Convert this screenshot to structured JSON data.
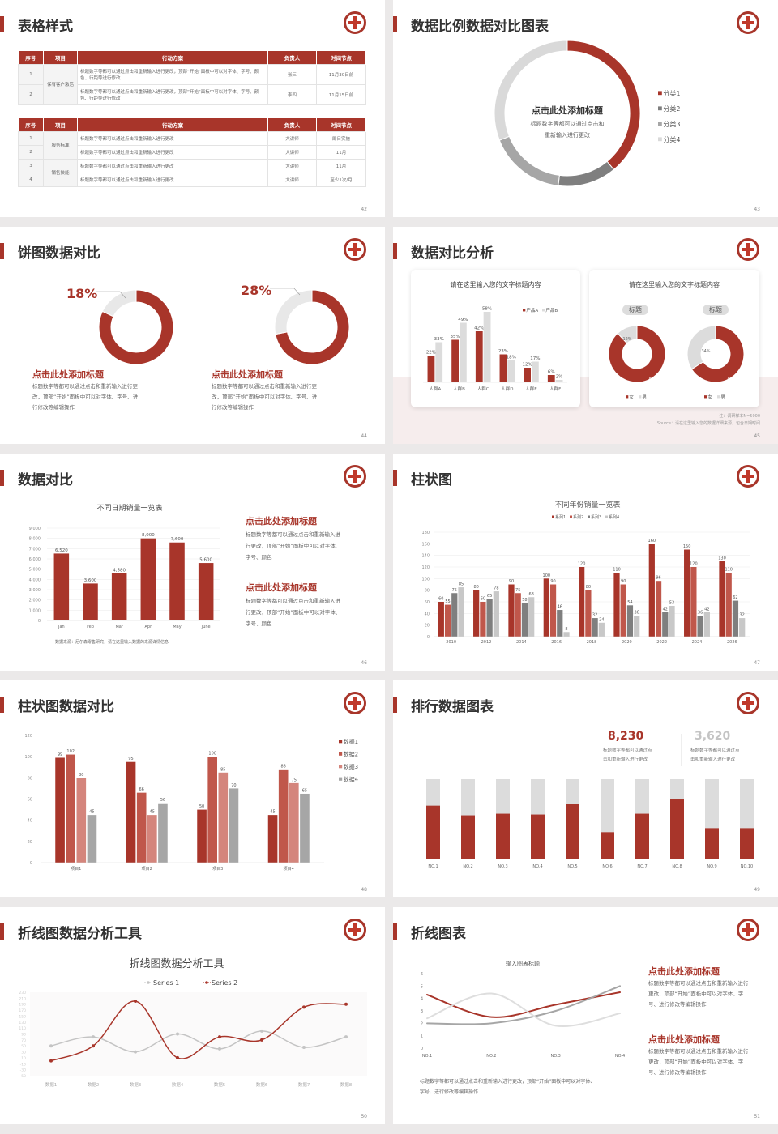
{
  "colors": {
    "accent": "#a8352a",
    "gray_dark": "#7f7f7f",
    "gray_mid": "#a6a6a6",
    "gray_light": "#d9d9d9"
  },
  "s42": {
    "title": "表格样式",
    "page": "42",
    "headers": [
      "序号",
      "项目",
      "行动方案",
      "负责人",
      "时间节点"
    ],
    "table1": {
      "group": "保有客户激活",
      "rows": [
        {
          "no": "1",
          "plan": "标题数字等都可以通过点击和重新输入进行更改，顶部“开始”面板中可以对字体、字号、颜色、行距等进行修改",
          "owner": "张三",
          "time": "11月30日前"
        },
        {
          "no": "2",
          "plan": "标题数字等都可以通过点击和重新输入进行更改，顶部“开始”面板中可以对字体、字号、颜色、行距等进行修改",
          "owner": "李四",
          "time": "11月15日前"
        }
      ]
    },
    "table2": {
      "groups": [
        "服务标准",
        "销售技能"
      ],
      "rows": [
        {
          "no": "1",
          "plan": "标题数字等都可以通过点击和重新输入进行更改",
          "owner": "大讲师",
          "time": "即日实施"
        },
        {
          "no": "2",
          "plan": "标题数字等都可以通过点击和重新输入进行更改",
          "owner": "大讲师",
          "time": "11月"
        },
        {
          "no": "3",
          "plan": "标题数字等都可以通过点击和重新输入进行更改",
          "owner": "大讲师",
          "time": "11月"
        },
        {
          "no": "4",
          "plan": "标题数字等都可以通过点击和重新输入进行更改",
          "owner": "大讲师",
          "time": "至少1次/月"
        }
      ]
    }
  },
  "s43": {
    "title": "数据比例数据对比图表",
    "page": "43",
    "center_title": "点击此处添加标题",
    "center_lines": [
      "标题数字等都可以通过点击和",
      "重新输入进行更改"
    ]
  },
  "s44": {
    "title": "饼图数据对比",
    "page": "44",
    "items": [
      {
        "heading": "点击此处添加标题",
        "lines": [
          "标题数字等都可以通过点击和重新输入进行更",
          "改，顶部“开始”面板中可以对字体、字号、进",
          "行修改等编辑操作"
        ]
      },
      {
        "heading": "点击此处添加标题",
        "lines": [
          "标题数字等都可以通过点击和重新输入进行更",
          "改，顶部“开始”面板中可以对字体、字号、进",
          "行修改等编辑操作"
        ]
      }
    ]
  },
  "s45": {
    "title": "数据对比分析",
    "page": "45",
    "note": "注：调研样本N=5000",
    "source": "Source：请在这里输入您的数据详细来源，包含日期时间"
  },
  "s46": {
    "title": "数据对比",
    "page": "46",
    "source": "数据来源：尼尔森零售研究，请在这里输入数据的来源详情信息",
    "blocks": [
      {
        "heading": "点击此处添加标题",
        "lines": [
          "标题数字等都可以通过点击和重新输入进",
          "行更改，顶部“开始”面板中可以对字体、",
          "字号、颜色"
        ]
      },
      {
        "heading": "点击此处添加标题",
        "lines": [
          "标题数字等都可以通过点击和重新输入进",
          "行更改，顶部“开始”面板中可以对字体、",
          "字号、颜色"
        ]
      }
    ]
  },
  "s47": {
    "title": "柱状图",
    "page": "47"
  },
  "s48": {
    "title": "柱状图数据对比",
    "page": "48"
  },
  "s49": {
    "title": "排行数据图表",
    "page": "49",
    "stats": [
      {
        "value": "8,230",
        "lines": [
          "标题数字等都可以通过点",
          "击和重新输入进行更改"
        ]
      },
      {
        "value": "3,620",
        "lines": [
          "标题数字等都可以通过点",
          "击和重新输入进行更改"
        ]
      }
    ]
  },
  "s50": {
    "title": "折线图数据分析工具",
    "page": "50"
  },
  "s51": {
    "title": "折线图表",
    "page": "51",
    "footnote": [
      "标题数字等都可以通过点击和重新输入进行更改，顶部“开始”面板中可以对字体、",
      "字号、进行修改等编辑操作"
    ],
    "blocks": [
      {
        "heading": "点击此处添加标题",
        "lines": [
          "标题数字等都可以通过点击和重新输入进行",
          "更改，顶部“开始”面板中可以对字体、字",
          "号、进行修改等编辑操作"
        ]
      },
      {
        "heading": "点击此处添加标题",
        "lines": [
          "标题数字等都可以通过点击和重新输入进行",
          "更改，顶部“开始”面板中可以对字体、字",
          "号、进行修改等编辑操作"
        ]
      }
    ]
  },
  "chart_data": [
    {
      "type": "pie",
      "donut": true,
      "categories": [
        "分类1",
        "分类2",
        "分类3",
        "分类4"
      ],
      "values": [
        39,
        13,
        17,
        31
      ],
      "legend": "right"
    },
    {
      "type": "pie",
      "donut": true,
      "label": "18%",
      "values": [
        82,
        18
      ]
    },
    {
      "type": "pie",
      "donut": true,
      "label": "28%",
      "values": [
        72,
        28
      ]
    },
    {
      "type": "bar",
      "title": "请在这里输入您的文字标题内容",
      "categories": [
        "人群A",
        "人群B",
        "人群C",
        "人群D",
        "人群E",
        "人群F"
      ],
      "series": [
        {
          "name": "产品A",
          "values": [
            22,
            35,
            42,
            23,
            12,
            6
          ]
        },
        {
          "name": "产品B",
          "values": [
            33,
            49,
            58,
            18,
            17,
            2
          ]
        }
      ],
      "unit": "%",
      "ylim": [
        0,
        64
      ],
      "legend": "top-right"
    },
    {
      "type": "pie",
      "donut": true,
      "title": "请在这里输入您的文字标题内容",
      "label": "标题",
      "categories": [
        "女",
        "男"
      ],
      "values": [
        88,
        12
      ],
      "unit": "%"
    },
    {
      "type": "pie",
      "donut": true,
      "label": "标题",
      "categories": [
        "女",
        "男"
      ],
      "values": [
        66,
        34
      ],
      "unit": "%"
    },
    {
      "type": "bar",
      "title": "不同日期销量一览表",
      "categories": [
        "Jan",
        "Feb",
        "Mar",
        "Apr",
        "May",
        "June"
      ],
      "series": [
        {
          "values": [
            6520,
            3600,
            4580,
            8000,
            7600,
            5600
          ]
        }
      ],
      "ylim": [
        0,
        9000
      ],
      "ystep": 1000,
      "grid": true
    },
    {
      "type": "bar",
      "title": "不同年份销量一览表",
      "categories": [
        "2010",
        "2012",
        "2014",
        "2016",
        "2018",
        "2020",
        "2022",
        "2024",
        "2026"
      ],
      "series": [
        {
          "name": "系列1",
          "values": [
            60,
            80,
            90,
            100,
            120,
            110,
            160,
            150,
            130
          ]
        },
        {
          "name": "系列2",
          "values": [
            55,
            60,
            75,
            90,
            80,
            90,
            96,
            120,
            110
          ]
        },
        {
          "name": "系列3",
          "values": [
            75,
            65,
            58,
            46,
            32,
            54,
            42,
            36,
            62
          ]
        },
        {
          "name": "系列4",
          "values": [
            85,
            78,
            68,
            8,
            24,
            36,
            53,
            42,
            32
          ]
        }
      ],
      "ylim": [
        0,
        180
      ],
      "ystep": 20,
      "legend": "top"
    },
    {
      "type": "bar",
      "categories": [
        "项目1",
        "项目2",
        "项目3",
        "项目4"
      ],
      "series": [
        {
          "name": "数据1",
          "values": [
            99,
            95,
            50,
            45
          ]
        },
        {
          "name": "数据2",
          "values": [
            102,
            66,
            100,
            88
          ]
        },
        {
          "name": "数据3",
          "values": [
            80,
            45,
            85,
            75
          ]
        },
        {
          "name": "数据4",
          "values": [
            45,
            56,
            70,
            65
          ]
        }
      ],
      "ylim": [
        0,
        120
      ],
      "ystep": 20,
      "legend": "right"
    },
    {
      "type": "bar",
      "stacked": true,
      "categories": [
        "NO.1",
        "NO.2",
        "NO.3",
        "NO.4",
        "NO.5",
        "NO.6",
        "NO.7",
        "NO.8",
        "NO.9",
        "NO.10"
      ],
      "values": [
        0.67,
        0.55,
        0.57,
        0.56,
        0.69,
        0.34,
        0.57,
        0.75,
        0.39,
        0.39
      ]
    },
    {
      "type": "line",
      "title": "折线图数据分析工具",
      "categories": [
        "数据1",
        "数据2",
        "数据3",
        "数据4",
        "数据5",
        "数据6",
        "数据7",
        "数据8"
      ],
      "series": [
        {
          "name": "Series 1",
          "values": [
            50,
            80,
            30,
            90,
            40,
            100,
            45,
            80
          ]
        },
        {
          "name": "Series 2",
          "values": [
            0,
            50,
            200,
            10,
            80,
            70,
            180,
            190
          ]
        }
      ],
      "ylim": [
        -50,
        230
      ],
      "ystep": 20,
      "legend": "top"
    },
    {
      "type": "line",
      "title": "输入图表标题",
      "categories": [
        "NO.1",
        "NO.2",
        "NO.3",
        "NO.4"
      ],
      "series": [
        {
          "values": [
            4.3,
            2.5,
            3.5,
            4.5
          ]
        },
        {
          "values": [
            2.0,
            2.0,
            3.0,
            5.0
          ]
        },
        {
          "values": [
            2.4,
            4.4,
            1.8,
            2.8
          ]
        }
      ],
      "ylim": [
        0,
        6
      ],
      "ystep": 1
    }
  ]
}
